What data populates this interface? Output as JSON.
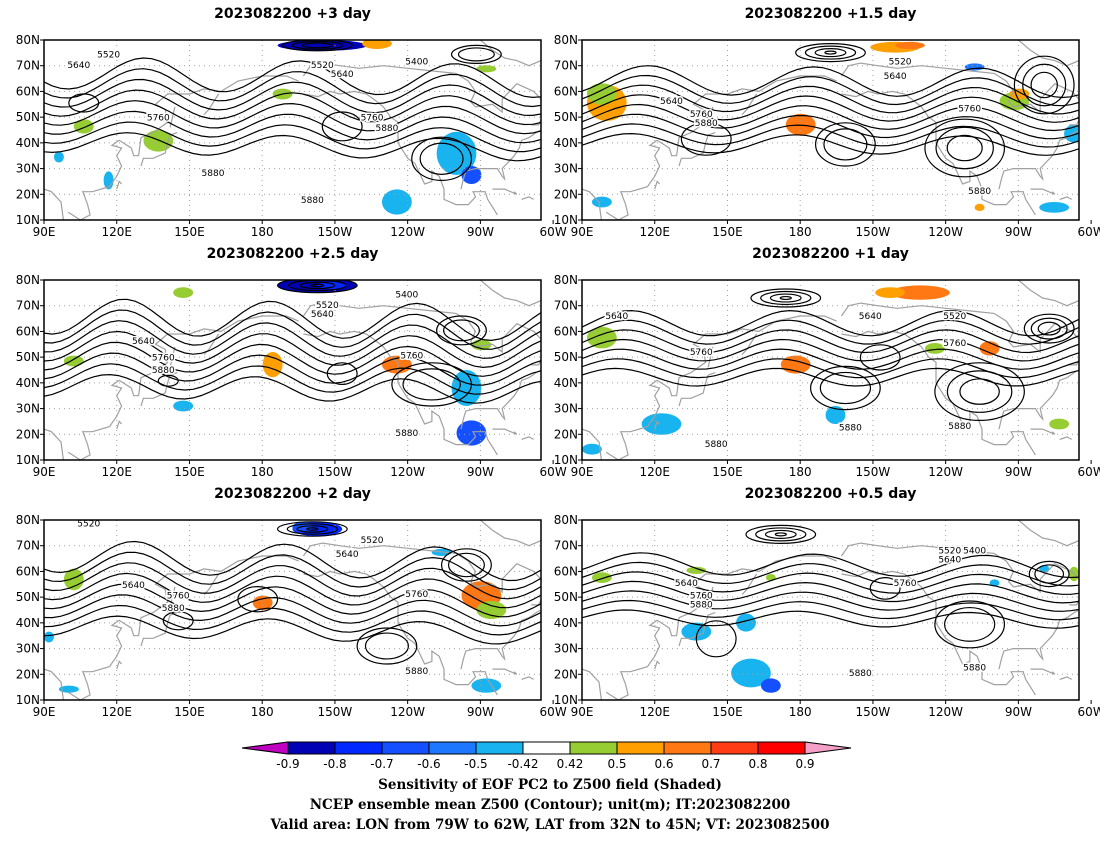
{
  "panels": [
    {
      "title": "2023082200  +3 day",
      "contour_labels": [
        "5520",
        "5640",
        "5400",
        "5520",
        "5640",
        "5760",
        "5760",
        "5880",
        "5880",
        "5880"
      ]
    },
    {
      "title": "2023082200  +1.5  day",
      "contour_labels": [
        "5520",
        "5640",
        "5640",
        "5760",
        "5880",
        "5760",
        "5880"
      ]
    },
    {
      "title": "2023082200  +2.5  day",
      "contour_labels": [
        "5400",
        "5520",
        "5640",
        "5640",
        "5760",
        "5880",
        "5760",
        "5880"
      ]
    },
    {
      "title": "2023082200  +1  day",
      "contour_labels": [
        "5640",
        "5640",
        "5520",
        "5760",
        "5760",
        "5880",
        "5880",
        "5880"
      ]
    },
    {
      "title": "2023082200  +2  day",
      "contour_labels": [
        "5520",
        "5520",
        "5640",
        "5640",
        "5760",
        "5760",
        "5880",
        "5880"
      ]
    },
    {
      "title": "2023082200  +0.5  day",
      "contour_labels": [
        "5520",
        "5400",
        "5640",
        "5640",
        "5760",
        "5760",
        "5880",
        "5880",
        "5880"
      ]
    }
  ],
  "axes": {
    "lat_ticks": [
      "80N",
      "70N",
      "60N",
      "50N",
      "40N",
      "30N",
      "20N",
      "10N"
    ],
    "lon_ticks": [
      "90E",
      "120E",
      "150E",
      "180",
      "150W",
      "120W",
      "90W",
      "60W"
    ]
  },
  "colorbar": {
    "labels": [
      "-0.9",
      "-0.8",
      "-0.7",
      "-0.6",
      "-0.5",
      "-0.42",
      "0.42",
      "0.5",
      "0.6",
      "0.7",
      "0.8",
      "0.9"
    ],
    "colors": [
      "#c000c0",
      "#0000b4",
      "#0028ff",
      "#1450ff",
      "#1e78ff",
      "#19b4f0",
      "#ffffff",
      "#96cd32",
      "#ffa000",
      "#ff7814",
      "#ff3c14",
      "#ff0000",
      "#f5a0c8"
    ]
  },
  "caption": {
    "line1": "Sensitivity of EOF PC2 to Z500 field (Shaded)",
    "line2": "NCEP ensemble mean Z500 (Contour); unit(m); IT:2023082200",
    "line3": "Valid area: LON from 79W to 62W, LAT from 32N to 45N; VT: 2023082500"
  },
  "style": {
    "contour_color": "#000000",
    "coast_color": "#a0a0a0",
    "grid_color": "#a0a0a0"
  }
}
